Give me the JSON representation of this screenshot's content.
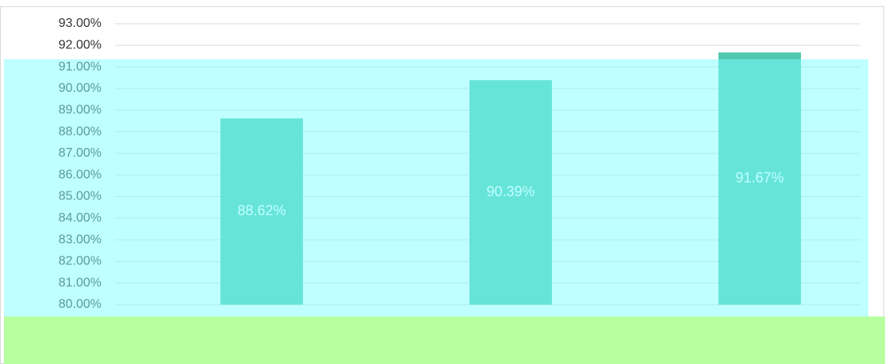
{
  "chart_data": {
    "type": "bar",
    "categories": [
      null,
      null,
      null
    ],
    "values": [
      88.62,
      90.39,
      91.67
    ],
    "value_labels": [
      "88.62%",
      "90.39%",
      "91.67%"
    ],
    "color": "#4ec9b0",
    "ylim": [
      80,
      93
    ],
    "yticks": [
      {
        "value": 80,
        "label": "80.00%"
      },
      {
        "value": 81,
        "label": "81.00%"
      },
      {
        "value": 82,
        "label": "82.00%"
      },
      {
        "value": 83,
        "label": "83.00%"
      },
      {
        "value": 84,
        "label": "84.00%"
      },
      {
        "value": 85,
        "label": "85.00%"
      },
      {
        "value": 86,
        "label": "86.00%"
      },
      {
        "value": 87,
        "label": "87.00%"
      },
      {
        "value": 88,
        "label": "88.00%"
      },
      {
        "value": 89,
        "label": "89.00%"
      },
      {
        "value": 90,
        "label": "90.00%"
      },
      {
        "value": 91,
        "label": "91.00%"
      },
      {
        "value": 92,
        "label": "92.00%"
      },
      {
        "value": 93,
        "label": "93.00%"
      }
    ],
    "grid": true
  }
}
